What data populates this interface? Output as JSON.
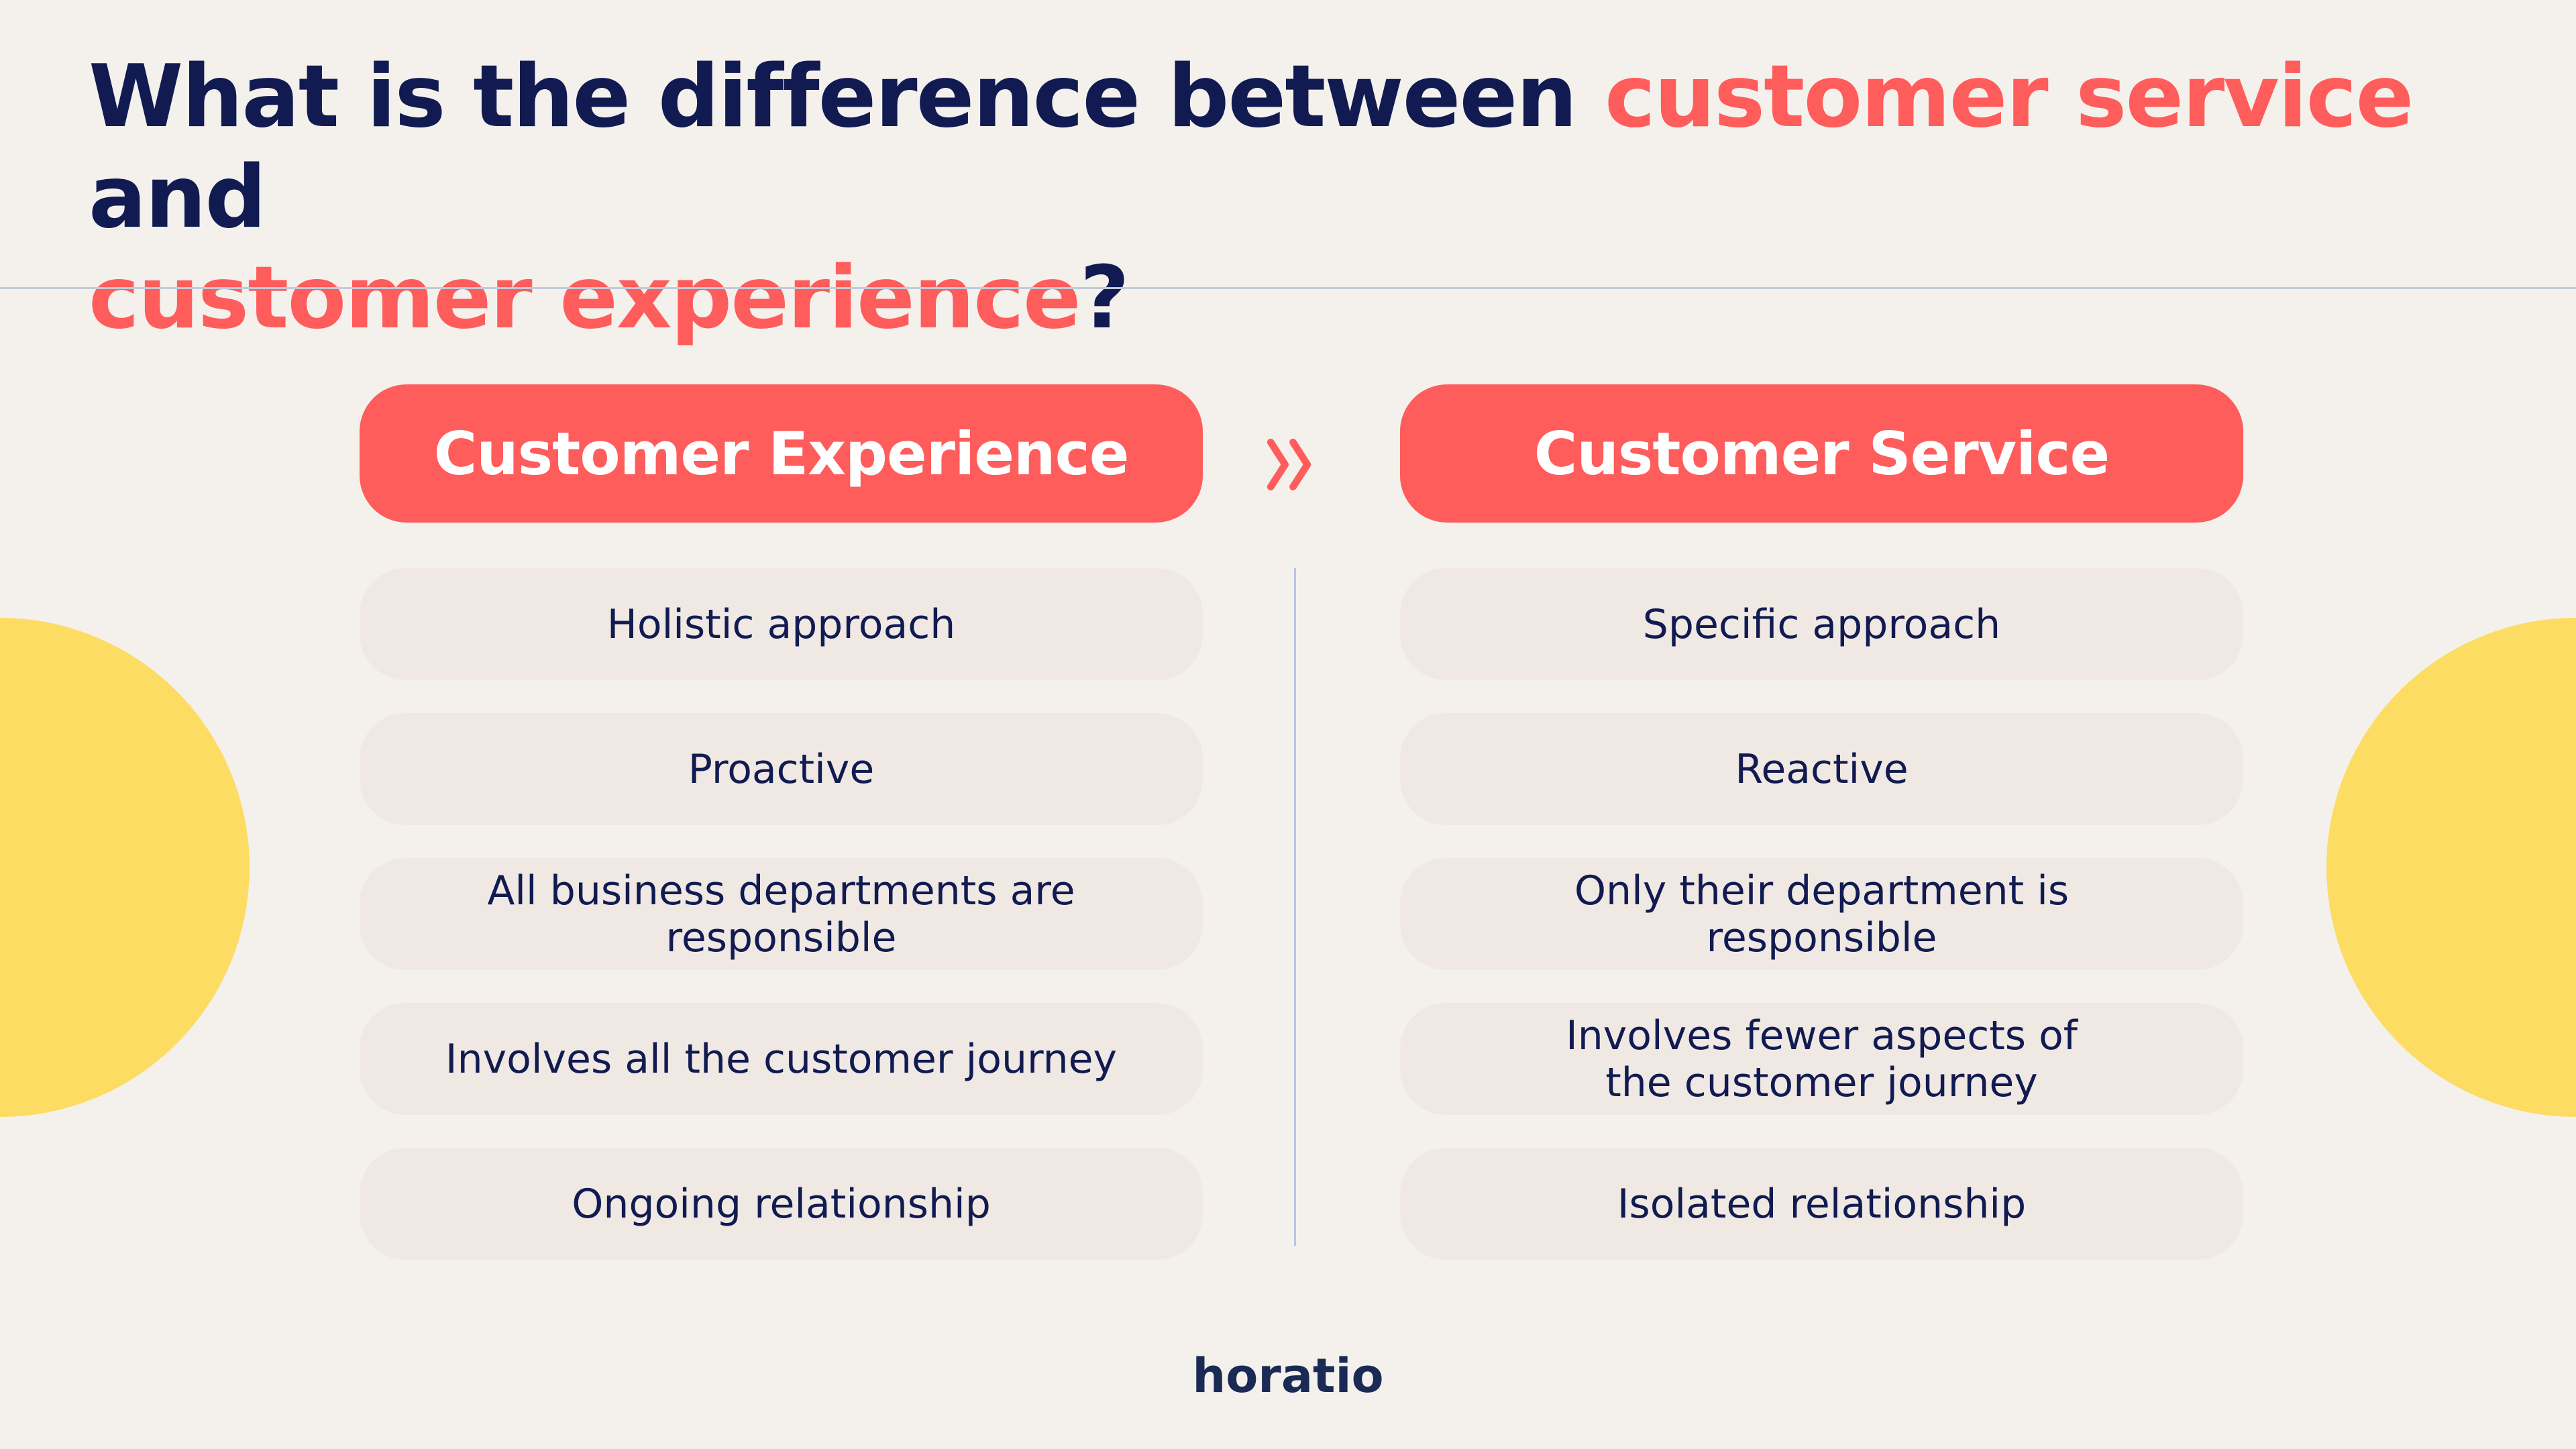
{
  "title": {
    "part1": "What is the difference between ",
    "highlight1": "customer service",
    "part2": " and ",
    "highlight2": "customer experience",
    "part3": "?"
  },
  "colors": {
    "accent": "#ff5c5c",
    "navy": "#111b52",
    "yellow": "#fddc64",
    "background": "#f4f1ec"
  },
  "left": {
    "header": "Customer Experience",
    "items": [
      "Holistic approach",
      "Proactive",
      "All business departments are responsible",
      "Involves all the customer journey",
      "Ongoing relationship"
    ]
  },
  "right": {
    "header": "Customer Service",
    "items": [
      "Specific approach",
      "Reactive",
      "Only their department is responsible",
      "Involves fewer aspects of the customer journey",
      "Isolated relationship"
    ]
  },
  "separator_icon": "double-chevron-right-icon",
  "logo": "horatio"
}
